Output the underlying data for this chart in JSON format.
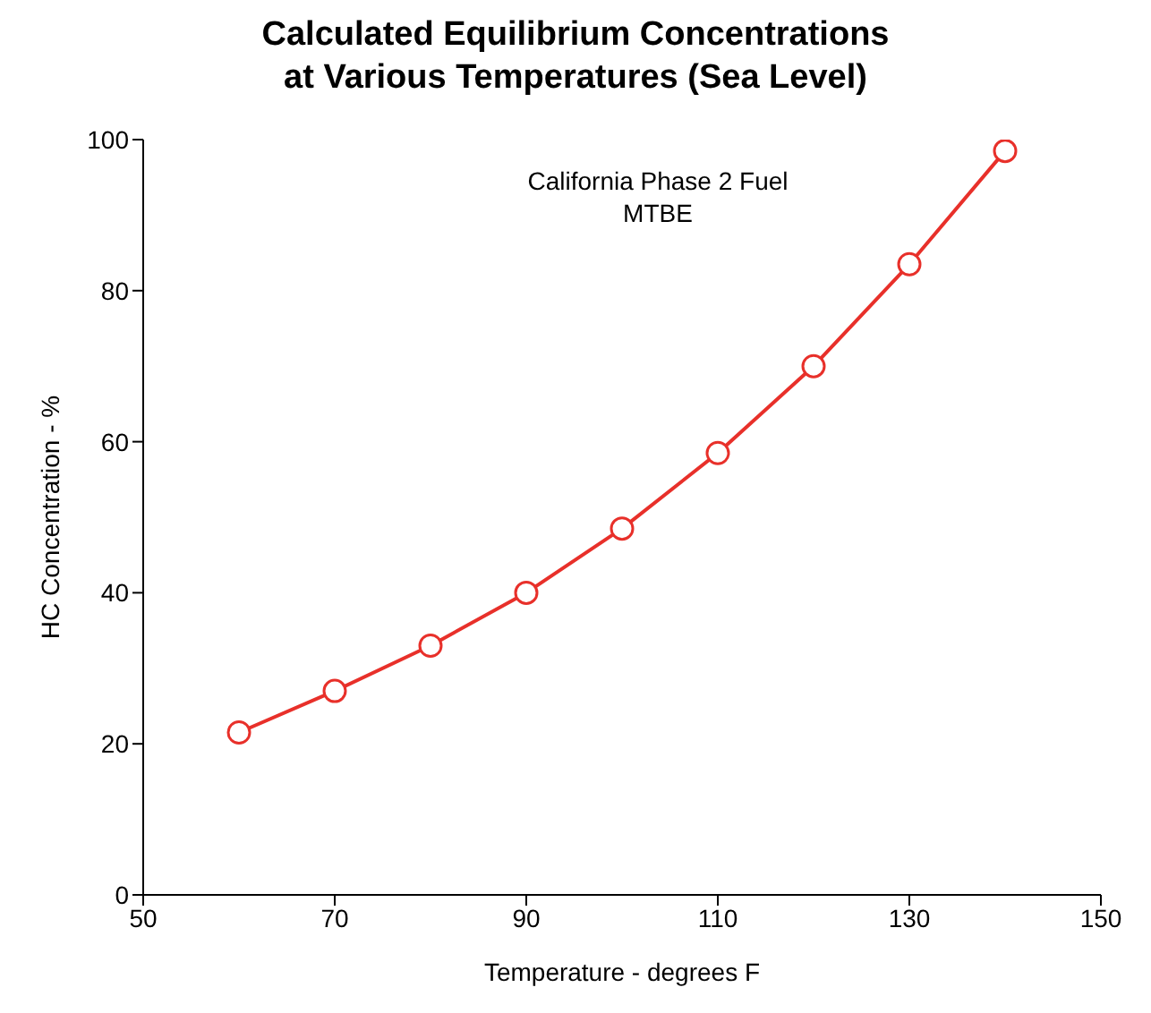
{
  "chart_data": {
    "type": "line",
    "title": "Calculated Equilibrium Concentrations\nat Various Temperatures (Sea Level)",
    "xlabel": "Temperature - degrees F",
    "ylabel": "HC Concentration - %",
    "annotations": [
      "California Phase 2 Fuel",
      "MTBE"
    ],
    "x": [
      60,
      70,
      80,
      90,
      100,
      110,
      120,
      130,
      140
    ],
    "series": [
      {
        "color": "#e8302a",
        "values": [
          21.5,
          27,
          33,
          40,
          48.5,
          58.5,
          70,
          83.5,
          98.5
        ]
      }
    ],
    "xlim": [
      50,
      150
    ],
    "xticks": [
      50,
      70,
      90,
      110,
      130,
      150
    ],
    "ylim": [
      0,
      100
    ],
    "yticks": [
      0,
      20,
      40,
      60,
      80,
      100
    ],
    "grid": false,
    "legend": false,
    "marker": "circle",
    "line_style": "solid"
  }
}
